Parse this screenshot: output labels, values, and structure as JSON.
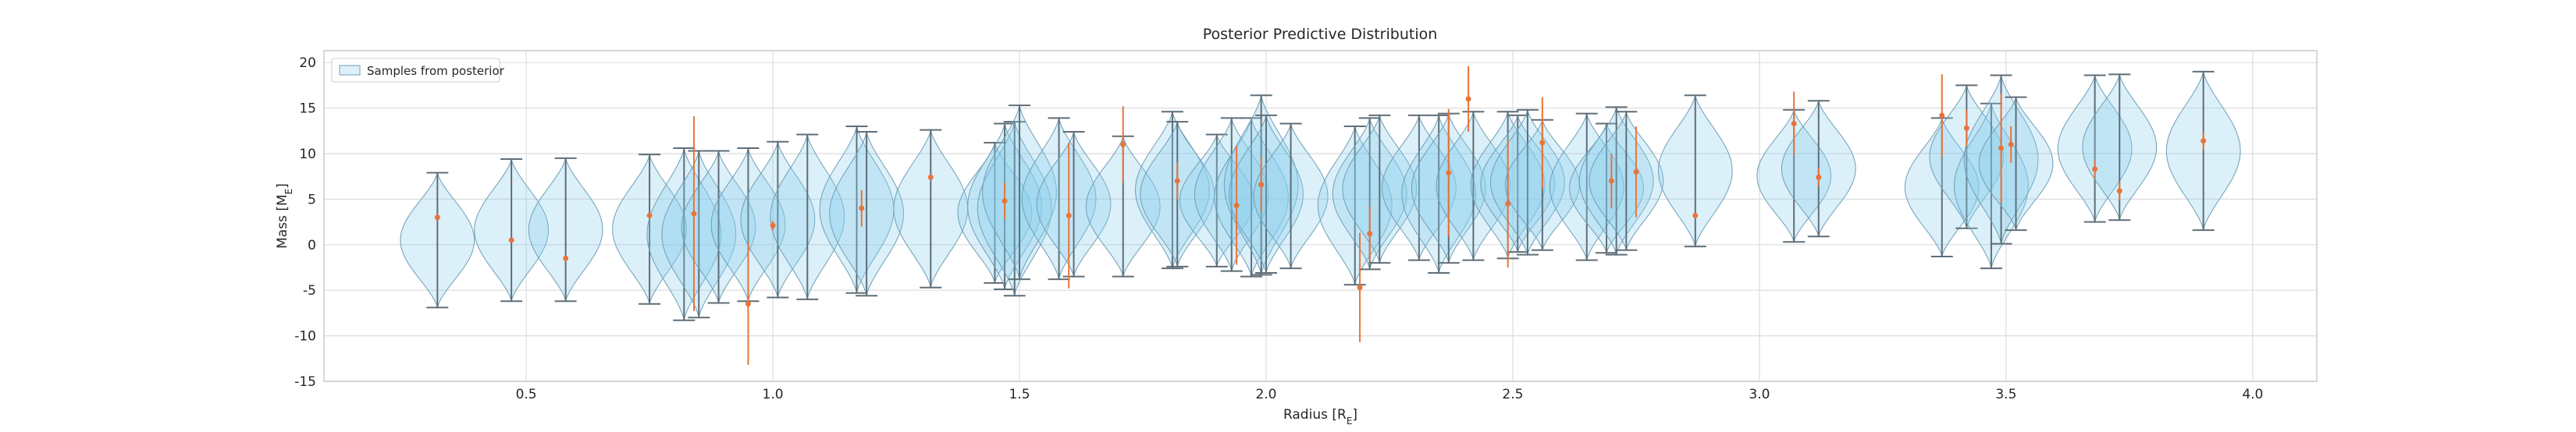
{
  "chart_data": {
    "type": "violin",
    "title": "Posterior Predictive Distribution",
    "xlabel": [
      "Radius [R",
      "E",
      "]"
    ],
    "ylabel": [
      "Mass [M",
      "E",
      "]"
    ],
    "xlim": [
      0.09,
      4.13
    ],
    "ylim": [
      -15,
      21.3
    ],
    "xticks": [
      0.5,
      {
        "value": 1,
        "label": "1.0"
      },
      1.5,
      {
        "value": 2,
        "label": "2.0"
      },
      2.5,
      {
        "value": 3,
        "label": "3.0"
      },
      3.5,
      {
        "value": 4,
        "label": "4.0"
      }
    ],
    "yticks": [
      -15,
      -10,
      -5,
      0,
      5,
      10,
      15,
      20
    ],
    "grid": true,
    "legend": "upper left",
    "series": [
      {
        "name": "Samples from posterior",
        "color": "#87ceeb",
        "x": [
          0.32,
          0.47,
          0.58,
          0.75,
          0.82,
          0.85,
          0.89,
          0.95,
          1.01,
          1.07,
          1.17,
          1.19,
          1.32,
          1.45,
          1.47,
          1.49,
          1.5,
          1.58,
          1.61,
          1.71,
          1.81,
          1.82,
          1.9,
          1.93,
          1.97,
          1.99,
          2.0,
          2.05,
          2.18,
          2.21,
          2.23,
          2.31,
          2.35,
          2.37,
          2.42,
          2.49,
          2.51,
          2.53,
          2.56,
          2.65,
          2.69,
          2.71,
          2.73,
          2.87,
          3.07,
          3.12,
          3.37,
          3.42,
          3.47,
          3.49,
          3.52,
          3.68,
          3.73,
          3.9
        ],
        "min": [
          -6.9,
          -6.2,
          -6.2,
          -6.5,
          -8.3,
          -8.0,
          -6.4,
          -6.2,
          -5.8,
          -6.0,
          -5.3,
          -5.6,
          -4.7,
          -4.2,
          -4.9,
          -5.6,
          -3.8,
          -3.8,
          -3.5,
          -3.5,
          -2.6,
          -2.4,
          -2.4,
          -2.9,
          -3.5,
          -3.3,
          -3.1,
          -2.6,
          -4.4,
          -2.7,
          -2.0,
          -1.7,
          -3.1,
          -2.0,
          -1.7,
          -1.5,
          -0.8,
          -1.1,
          -0.6,
          -1.7,
          -0.9,
          -1.1,
          -0.6,
          -0.2,
          0.3,
          0.9,
          -1.3,
          1.8,
          -2.6,
          0.1,
          1.6,
          2.5,
          2.7,
          1.6
        ],
        "max": [
          7.9,
          9.4,
          9.5,
          9.9,
          10.6,
          10.3,
          10.3,
          10.6,
          11.3,
          12.1,
          13.0,
          12.4,
          12.6,
          11.2,
          13.3,
          13.5,
          15.3,
          13.9,
          12.4,
          11.9,
          14.6,
          13.5,
          12.1,
          13.9,
          13.9,
          16.4,
          14.2,
          13.3,
          13.0,
          13.9,
          14.2,
          14.2,
          14.2,
          14.4,
          14.6,
          14.6,
          14.2,
          14.8,
          13.7,
          14.4,
          13.3,
          15.1,
          14.6,
          16.4,
          14.8,
          15.8,
          13.9,
          17.5,
          15.5,
          18.6,
          16.2,
          18.6,
          18.7,
          19.0
        ]
      },
      {
        "color": "#e8743b",
        "x": [
          0.32,
          0.47,
          0.58,
          0.75,
          0.84,
          0.95,
          1.0,
          1.18,
          1.32,
          1.47,
          1.6,
          1.71,
          1.82,
          1.94,
          1.99,
          2.19,
          2.21,
          2.37,
          2.41,
          2.49,
          2.56,
          2.7,
          2.75,
          2.87,
          3.07,
          3.12,
          3.37,
          3.42,
          3.49,
          3.51,
          3.68,
          3.73,
          3.9
        ],
        "values": [
          3.0,
          0.5,
          -1.5,
          3.2,
          3.4,
          -6.5,
          2.1,
          4.0,
          7.4,
          4.8,
          3.2,
          11.0,
          7.0,
          4.3,
          6.6,
          -4.7,
          1.2,
          7.9,
          16.0,
          4.5,
          11.2,
          7.0,
          8.0,
          3.2,
          13.3,
          7.4,
          14.2,
          12.8,
          10.6,
          11.0,
          8.3,
          5.9,
          11.4
        ],
        "yerr": [
          0.3,
          0.3,
          0.3,
          0.3,
          10.7,
          6.7,
          0.5,
          2,
          0.3,
          2,
          8,
          4.2,
          2,
          6.5,
          3,
          6,
          3,
          7,
          3.6,
          7,
          5,
          3,
          5,
          0.3,
          3.5,
          1,
          4.5,
          2,
          6,
          2,
          1,
          1,
          1
        ]
      }
    ]
  }
}
